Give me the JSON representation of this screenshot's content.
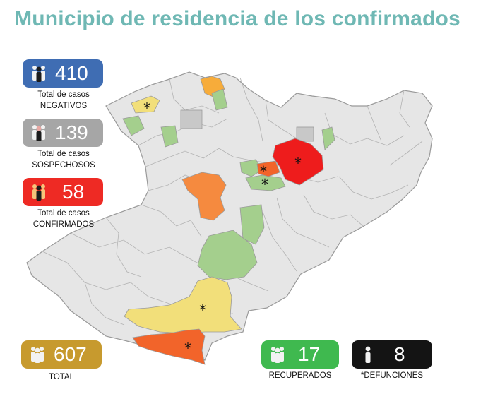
{
  "title": "Municipio de residencia de los confirmados",
  "stats": {
    "negativos": {
      "value": "410",
      "label_line1": "Total de casos",
      "label_line2": "NEGATIVOS",
      "color": "#3f6db3"
    },
    "sospechosos": {
      "value": "139",
      "label_line1": "Total de casos",
      "label_line2": "SOSPECHOSOS",
      "color": "#a6a6a6"
    },
    "confirmados": {
      "value": "58",
      "label_line1": "Total de casos",
      "label_line2": "CONFIRMADOS",
      "color": "#ee2a24"
    },
    "total": {
      "value": "607",
      "label": "TOTAL",
      "color": "#c79a2e"
    },
    "recuperados": {
      "value": "17",
      "label": "RECUPERADOS",
      "color": "#3fb94f"
    },
    "defunciones": {
      "value": "8",
      "label": "*DEFUNCIONES",
      "color": "#141414"
    }
  },
  "map": {
    "region_colors": {
      "base": "#e6e6e6",
      "grey": "#c8c8c8",
      "green": "#a4cf8d",
      "yellow": "#f2df7a",
      "orange_light": "#f7ac3a",
      "orange": "#f58a3f",
      "red_orange": "#f2642a",
      "red": "#ee1c1c"
    },
    "death_marker": "*"
  }
}
